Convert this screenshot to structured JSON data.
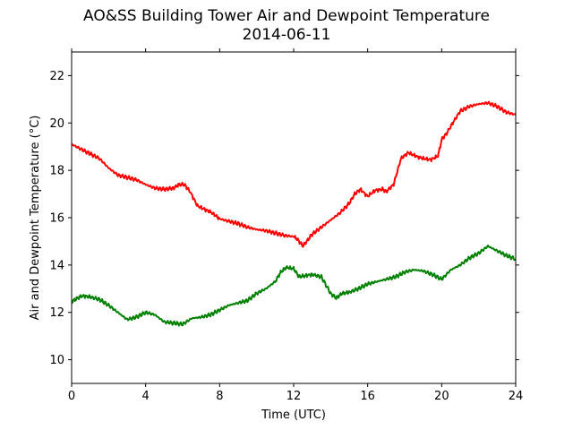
{
  "chart_data": {
    "type": "line",
    "title": "AO&SS Building Tower Air and Dewpoint Temperature",
    "subtitle": "2014-06-11",
    "xlabel": "Time (UTC)",
    "ylabel": "Air and Dewpoint Temperature (°C)",
    "xlim": [
      0,
      24
    ],
    "ylim": [
      9,
      23
    ],
    "xticks": [
      0,
      4,
      8,
      12,
      16,
      20,
      24
    ],
    "yticks": [
      10,
      12,
      14,
      16,
      18,
      20,
      22
    ],
    "grid": false,
    "legend": "none",
    "series": [
      {
        "color": "#ff0000",
        "x": [
          0,
          0.5,
          1,
          1.5,
          2,
          2.5,
          3,
          3.5,
          4,
          4.5,
          5,
          5.5,
          5.8,
          6.1,
          6.4,
          6.8,
          7.2,
          7.6,
          8,
          8.5,
          9,
          9.5,
          10,
          10.5,
          11,
          11.5,
          12,
          12.2,
          12.5,
          12.8,
          13,
          13.5,
          14,
          14.5,
          15,
          15.3,
          15.6,
          16,
          16.4,
          16.8,
          17,
          17.4,
          17.8,
          18.2,
          18.6,
          19,
          19.4,
          19.8,
          20,
          20.3,
          20.6,
          21,
          21.5,
          22,
          22.5,
          23,
          23.5,
          24
        ],
        "y": [
          19.1,
          18.9,
          18.7,
          18.5,
          18.1,
          17.8,
          17.7,
          17.6,
          17.4,
          17.25,
          17.2,
          17.25,
          17.4,
          17.4,
          17.1,
          16.5,
          16.35,
          16.2,
          15.95,
          15.85,
          15.75,
          15.6,
          15.5,
          15.45,
          15.35,
          15.25,
          15.2,
          15.1,
          14.8,
          15.1,
          15.3,
          15.6,
          15.9,
          16.2,
          16.6,
          17.0,
          17.2,
          16.9,
          17.15,
          17.2,
          17.1,
          17.4,
          18.5,
          18.75,
          18.6,
          18.5,
          18.45,
          18.6,
          19.3,
          19.6,
          20.0,
          20.5,
          20.7,
          20.8,
          20.85,
          20.7,
          20.45,
          20.35
        ]
      },
      {
        "color": "#008000",
        "x": [
          0,
          0.3,
          0.6,
          1,
          1.5,
          2,
          2.5,
          3,
          3.5,
          4,
          4.5,
          5,
          5.5,
          6,
          6.5,
          7,
          7.5,
          8,
          8.5,
          9,
          9.5,
          10,
          10.5,
          11,
          11.3,
          11.6,
          12,
          12.3,
          12.6,
          13,
          13.5,
          14,
          14.3,
          14.6,
          15,
          15.5,
          16,
          16.5,
          17,
          17.5,
          18,
          18.5,
          19,
          19.5,
          20,
          20.5,
          21,
          21.5,
          22,
          22.5,
          23,
          23.5,
          24
        ],
        "y": [
          12.45,
          12.6,
          12.7,
          12.65,
          12.55,
          12.3,
          12.0,
          11.7,
          11.8,
          12.0,
          11.9,
          11.6,
          11.55,
          11.5,
          11.75,
          11.8,
          11.9,
          12.1,
          12.3,
          12.4,
          12.5,
          12.8,
          13.0,
          13.3,
          13.7,
          13.9,
          13.85,
          13.5,
          13.55,
          13.6,
          13.5,
          12.8,
          12.6,
          12.8,
          12.85,
          13.0,
          13.2,
          13.3,
          13.4,
          13.5,
          13.7,
          13.8,
          13.75,
          13.6,
          13.4,
          13.8,
          14.0,
          14.3,
          14.5,
          14.8,
          14.6,
          14.4,
          14.25
        ]
      }
    ]
  }
}
